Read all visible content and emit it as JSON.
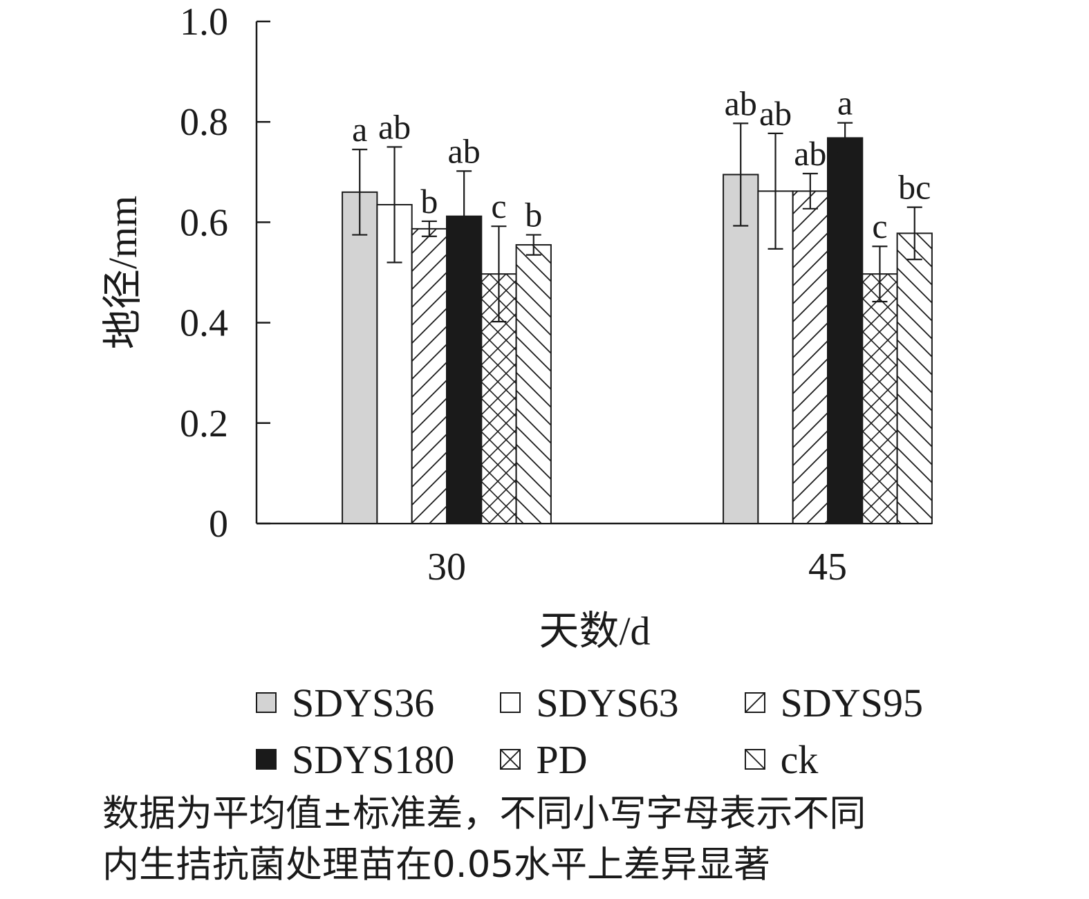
{
  "chart_data": {
    "type": "bar",
    "categories": [
      "30",
      "45"
    ],
    "xlabel": "天数/d",
    "ylabel": "地径/mm",
    "ylim": [
      0,
      1.0
    ],
    "yticks": [
      "0",
      "0.2",
      "0.4",
      "0.6",
      "0.8",
      "1.0"
    ],
    "ytick_values": [
      0,
      0.2,
      0.4,
      0.6,
      0.8,
      1.0
    ],
    "series": [
      {
        "name": "SDYS36",
        "values": [
          0.66,
          0.695
        ],
        "errors": [
          0.085,
          0.102
        ],
        "letters": [
          "a",
          "ab"
        ],
        "fill": "#d3d3d3",
        "pattern": "solid"
      },
      {
        "name": "SDYS63",
        "values": [
          0.635,
          0.662
        ],
        "errors": [
          0.115,
          0.115
        ],
        "letters": [
          "ab",
          "ab"
        ],
        "fill": "#ffffff",
        "pattern": "solid"
      },
      {
        "name": "SDYS95",
        "values": [
          0.587,
          0.662
        ],
        "errors": [
          0.015,
          0.035
        ],
        "letters": [
          "b",
          "ab"
        ],
        "fill": "#ffffff",
        "pattern": "forward-hatch"
      },
      {
        "name": "SDYS180",
        "values": [
          0.612,
          0.768
        ],
        "errors": [
          0.09,
          0.03
        ],
        "letters": [
          "ab",
          "a"
        ],
        "fill": "#1a1a1a",
        "pattern": "solid"
      },
      {
        "name": "PD",
        "values": [
          0.497,
          0.497
        ],
        "errors": [
          0.095,
          0.055
        ],
        "letters": [
          "c",
          "c"
        ],
        "fill": "#ffffff",
        "pattern": "crosshatch"
      },
      {
        "name": "ck",
        "values": [
          0.555,
          0.578
        ],
        "errors": [
          0.02,
          0.052
        ],
        "letters": [
          "b",
          "bc"
        ],
        "fill": "#ffffff",
        "pattern": "back-hatch"
      }
    ],
    "legend_position": "bottom",
    "grid": false
  },
  "note": {
    "line1": "数据为平均值±标准差，不同小写字母表示不同",
    "line2": "内生拮抗菌处理苗在0.05水平上差异显著"
  }
}
